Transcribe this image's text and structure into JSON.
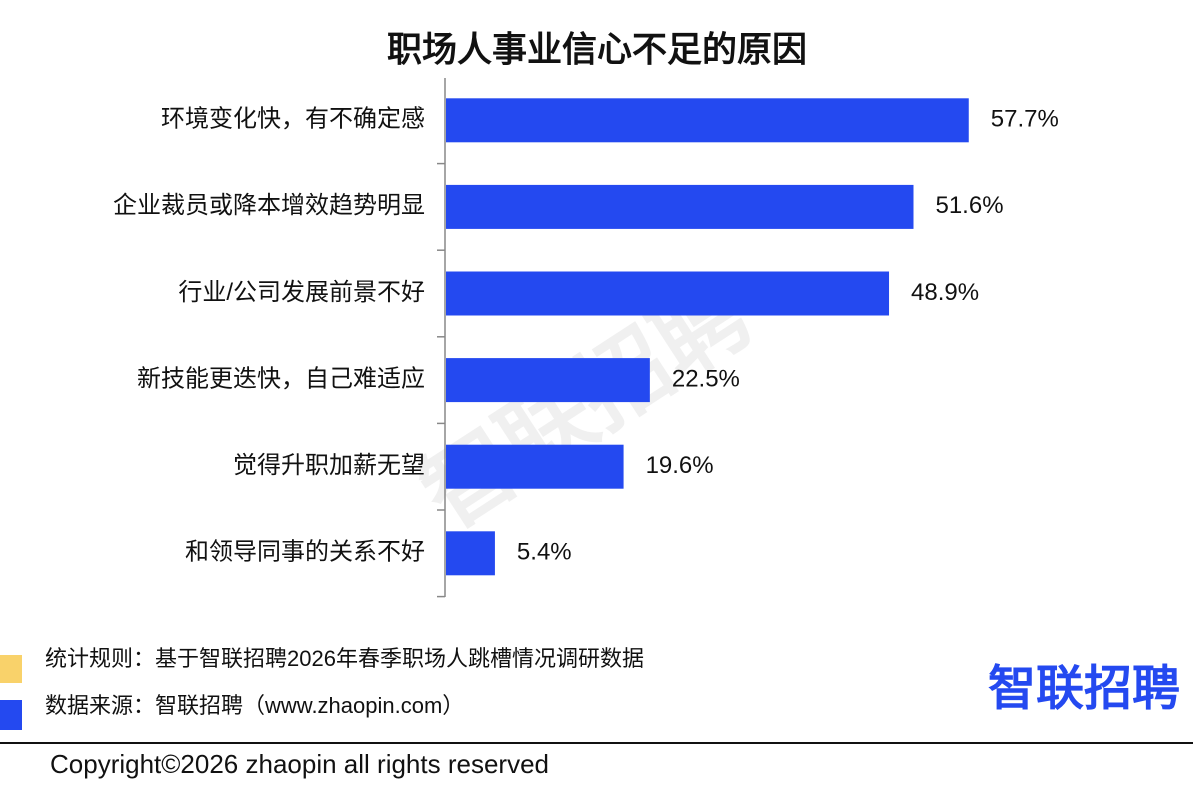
{
  "chart_data": {
    "type": "hbar",
    "title": "职场人事业信心不足的原因",
    "categories": [
      "环境变化快，有不确定感",
      "企业裁员或降本增效趋势明显",
      "行业/公司发展前景不好",
      "新技能更迭快，自己难适应",
      "觉得升职加薪无望",
      "和领导同事的关系不好"
    ],
    "values": [
      57.7,
      51.6,
      48.9,
      22.5,
      19.6,
      5.4
    ],
    "value_labels": [
      "57.7%",
      "51.6%",
      "48.9%",
      "22.5%",
      "19.6%",
      "5.4%"
    ],
    "color": "#2449f0"
  },
  "watermark": "智联招聘",
  "footer": {
    "rule": "统计规则：基于智联招聘2026年春季职场人跳槽情况调研数据",
    "source": "数据来源：智联招聘（www.zhaopin.com）",
    "logo": "智联招聘",
    "copyright": "Copyright©2026 zhaopin all rights reserved"
  }
}
